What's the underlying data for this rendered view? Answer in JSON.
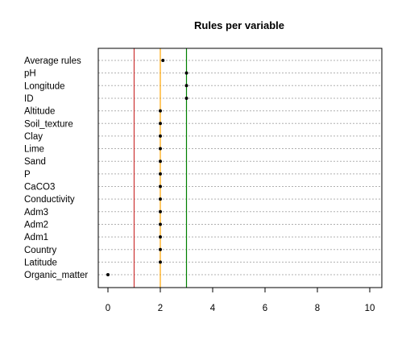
{
  "chart_data": {
    "type": "dotplot",
    "title": "Rules per variable",
    "xlabel": "",
    "ylabel": "",
    "xlim": [
      0,
      10
    ],
    "x_ticks": [
      0,
      2,
      4,
      6,
      8,
      10
    ],
    "grid": "horizontal dotted",
    "categories": [
      "Average rules",
      "pH",
      "Longitude",
      "ID",
      "Altitude",
      "Soil_texture",
      "Clay",
      "Lime",
      "Sand",
      "P",
      "CaCO3",
      "Conductivity",
      "Adm3",
      "Adm2",
      "Adm1",
      "Country",
      "Latitude",
      "Organic_matter"
    ],
    "values": [
      2.1,
      3,
      3,
      3,
      2,
      2,
      2,
      2,
      2,
      2,
      2,
      2,
      2,
      2,
      2,
      2,
      2,
      0
    ],
    "reference_lines": [
      {
        "value": 1,
        "color": "#cc3333"
      },
      {
        "value": 2,
        "color": "#ffa500"
      },
      {
        "value": 3,
        "color": "#008000"
      }
    ]
  }
}
